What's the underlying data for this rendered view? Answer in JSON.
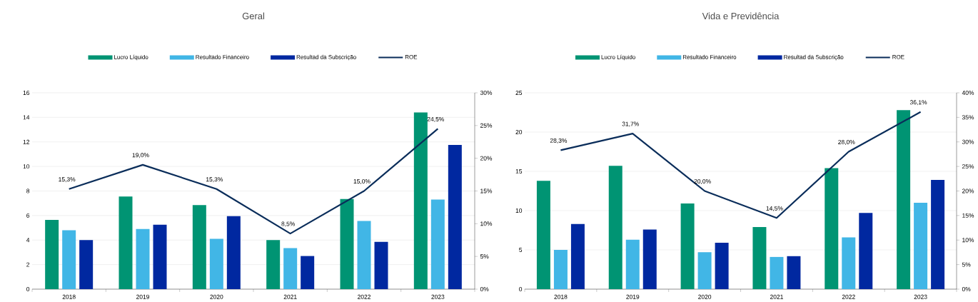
{
  "chart_data": [
    {
      "type": "bar",
      "title": "Geral",
      "categories": [
        "2018",
        "2019",
        "2020",
        "2021",
        "2022",
        "2023"
      ],
      "legend": "top",
      "grid": "y",
      "ylim": [
        0,
        16
      ],
      "yticks": [
        0,
        2,
        4,
        6,
        8,
        10,
        12,
        14,
        16
      ],
      "y2lim": [
        0,
        30
      ],
      "y2ticks": [
        {
          "value": 0,
          "label": "0%"
        },
        {
          "value": 5,
          "label": "5%"
        },
        {
          "value": 10,
          "label": "10%"
        },
        {
          "value": 15,
          "label": "15%"
        },
        {
          "value": 20,
          "label": "20%"
        },
        {
          "value": 25,
          "label": "25%"
        },
        {
          "value": 30,
          "label": "30%"
        }
      ],
      "series": [
        {
          "name": "Lucro Líquido",
          "color": "#009473",
          "values": [
            5.65,
            7.55,
            6.85,
            4.0,
            7.35,
            14.4
          ]
        },
        {
          "name": "Resultado Financeiro",
          "color": "#41b6e6",
          "values": [
            4.8,
            4.9,
            4.1,
            3.35,
            5.55,
            7.3
          ]
        },
        {
          "name": "Resultad da Subscrição",
          "color": "#0028a0",
          "values": [
            4.0,
            5.25,
            5.95,
            2.7,
            3.85,
            11.75
          ]
        },
        {
          "name": "ROE",
          "type": "line",
          "axis": "y2",
          "color": "#0a2d5a",
          "values": [
            15.3,
            19.0,
            15.3,
            8.5,
            15.0,
            24.5
          ],
          "value_labels": [
            "15,3%",
            "19,0%",
            "15,3%",
            "8,5%",
            "15,0%",
            "24,5%"
          ]
        }
      ]
    },
    {
      "type": "bar",
      "title": "Vida e Previdência",
      "categories": [
        "2018",
        "2019",
        "2020",
        "2021",
        "2022",
        "2023"
      ],
      "legend": "top",
      "grid": "y",
      "ylim": [
        0,
        25
      ],
      "yticks": [
        0,
        5,
        10,
        15,
        20,
        25
      ],
      "y2lim": [
        0,
        40
      ],
      "y2ticks": [
        {
          "value": 0,
          "label": "0%"
        },
        {
          "value": 5,
          "label": "5%"
        },
        {
          "value": 10,
          "label": "10%"
        },
        {
          "value": 15,
          "label": "15%"
        },
        {
          "value": 20,
          "label": "20%"
        },
        {
          "value": 25,
          "label": "25%"
        },
        {
          "value": 30,
          "label": "30%"
        },
        {
          "value": 35,
          "label": "35%"
        },
        {
          "value": 40,
          "label": "40%"
        }
      ],
      "series": [
        {
          "name": "Lucro Líquido",
          "color": "#009473",
          "values": [
            13.8,
            15.7,
            10.9,
            7.9,
            15.4,
            22.8
          ]
        },
        {
          "name": "Resultado Financeiro",
          "color": "#41b6e6",
          "values": [
            5.0,
            6.3,
            4.7,
            4.1,
            6.6,
            11.0
          ]
        },
        {
          "name": "Resultad da Subscrição",
          "color": "#0028a0",
          "values": [
            8.3,
            7.6,
            5.9,
            4.2,
            9.7,
            13.9
          ]
        },
        {
          "name": "ROE",
          "type": "line",
          "axis": "y2",
          "color": "#0a2d5a",
          "values": [
            28.3,
            31.7,
            20.0,
            14.5,
            28.0,
            36.1
          ],
          "value_labels": [
            "28,3%",
            "31,7%",
            "20,0%",
            "14,5%",
            "28,0%",
            "36,1%"
          ]
        }
      ]
    }
  ]
}
